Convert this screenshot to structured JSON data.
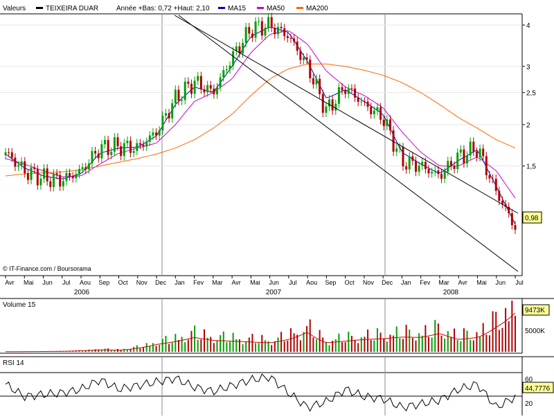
{
  "legend": {
    "valeurs": "Valeurs",
    "stock": "TEIXEIRA DUAR",
    "range": "Année +Bas: 0,72 +Haut: 2,10",
    "ma15": "MA15",
    "ma50": "MA50",
    "ma200": "MA200"
  },
  "colors": {
    "up": "#00a000",
    "down": "#b00000",
    "ma15": "#0000cc",
    "ma50": "#cc00cc",
    "ma200": "#ff6600",
    "volume_avg": "#cc0000",
    "last_box_bg": "#ffff99"
  },
  "credit": "© IT-Finance.com / Boursorama",
  "price": {
    "scale": "log",
    "y_ticks": [
      "4",
      "3",
      "2,5",
      "2",
      "1,5"
    ],
    "last_value": "0,98"
  },
  "x_axis": {
    "months": [
      "Avr",
      "Mai",
      "Jun",
      "Jul",
      "Aou",
      "Sep",
      "Oct",
      "Nov",
      "Dec",
      "Jan",
      "Fev",
      "Mar",
      "Avr",
      "Mai",
      "Jun",
      "Jul",
      "Aou",
      "Sep",
      "Oct",
      "Nov",
      "Dec",
      "Jan",
      "Fev",
      "Mar",
      "Avr",
      "Mai",
      "Jun",
      "Jul"
    ],
    "years": [
      "2006",
      "2007",
      "2008"
    ]
  },
  "volume": {
    "label": "Volume 15",
    "tick": "5000K",
    "last_value": "9473K"
  },
  "rsi": {
    "label": "RSI 14",
    "levels": [
      "60",
      "20"
    ],
    "last_value": "44,7776"
  },
  "chart_data": {
    "type": "candlestick",
    "ylim": [
      0.72,
      4.2
    ],
    "trend_channel": "two parallel descending lines",
    "monthly_close": {
      "x": [
        "2006-04",
        "2006-05",
        "2006-06",
        "2006-07",
        "2006-08",
        "2006-09",
        "2006-10",
        "2006-11",
        "2006-12",
        "2007-01",
        "2007-02",
        "2007-03",
        "2007-04",
        "2007-05",
        "2007-06",
        "2007-07",
        "2007-08",
        "2007-09",
        "2007-10",
        "2007-11",
        "2007-12",
        "2008-01",
        "2008-02",
        "2008-03",
        "2008-04",
        "2008-05",
        "2008-06",
        "2008-07"
      ],
      "y": [
        1.65,
        1.45,
        1.38,
        1.36,
        1.45,
        1.7,
        1.72,
        1.7,
        1.9,
        2.4,
        2.7,
        2.5,
        3.2,
        3.9,
        4.0,
        3.7,
        3.0,
        2.2,
        2.6,
        2.3,
        2.1,
        1.55,
        1.5,
        1.4,
        1.6,
        1.7,
        1.25,
        0.98
      ]
    },
    "series": [
      {
        "name": "MA15",
        "y": [
          1.63,
          1.48,
          1.4,
          1.37,
          1.42,
          1.64,
          1.7,
          1.71,
          1.85,
          2.3,
          2.6,
          2.5,
          3.0,
          3.7,
          3.95,
          3.8,
          3.1,
          2.4,
          2.55,
          2.35,
          2.15,
          1.65,
          1.52,
          1.42,
          1.56,
          1.68,
          1.3,
          1.0
        ]
      },
      {
        "name": "MA50",
        "y": [
          1.58,
          1.52,
          1.45,
          1.39,
          1.4,
          1.52,
          1.64,
          1.7,
          1.76,
          2.0,
          2.35,
          2.5,
          2.75,
          3.3,
          3.75,
          3.85,
          3.5,
          2.9,
          2.6,
          2.45,
          2.25,
          1.9,
          1.65,
          1.5,
          1.5,
          1.6,
          1.45,
          1.2
        ]
      },
      {
        "name": "MA200",
        "y": [
          1.4,
          1.42,
          1.43,
          1.44,
          1.46,
          1.5,
          1.54,
          1.58,
          1.63,
          1.7,
          1.8,
          1.95,
          2.15,
          2.45,
          2.75,
          2.95,
          3.05,
          3.05,
          3.0,
          2.92,
          2.82,
          2.68,
          2.5,
          2.3,
          2.1,
          1.95,
          1.8,
          1.7
        ]
      }
    ],
    "volume_k": [
      40,
      60,
      80,
      120,
      250,
      500,
      400,
      900,
      1800,
      2500,
      3500,
      2800,
      2600,
      2400,
      2200,
      3000,
      4800,
      2200,
      2600,
      3000,
      3200,
      3600,
      3500,
      4500,
      3000,
      3500,
      6000,
      9473
    ],
    "rsi": [
      62,
      45,
      48,
      50,
      55,
      68,
      55,
      60,
      65,
      70,
      58,
      52,
      60,
      68,
      72,
      50,
      30,
      38,
      55,
      45,
      42,
      30,
      35,
      40,
      55,
      62,
      30,
      44.7776
    ]
  }
}
